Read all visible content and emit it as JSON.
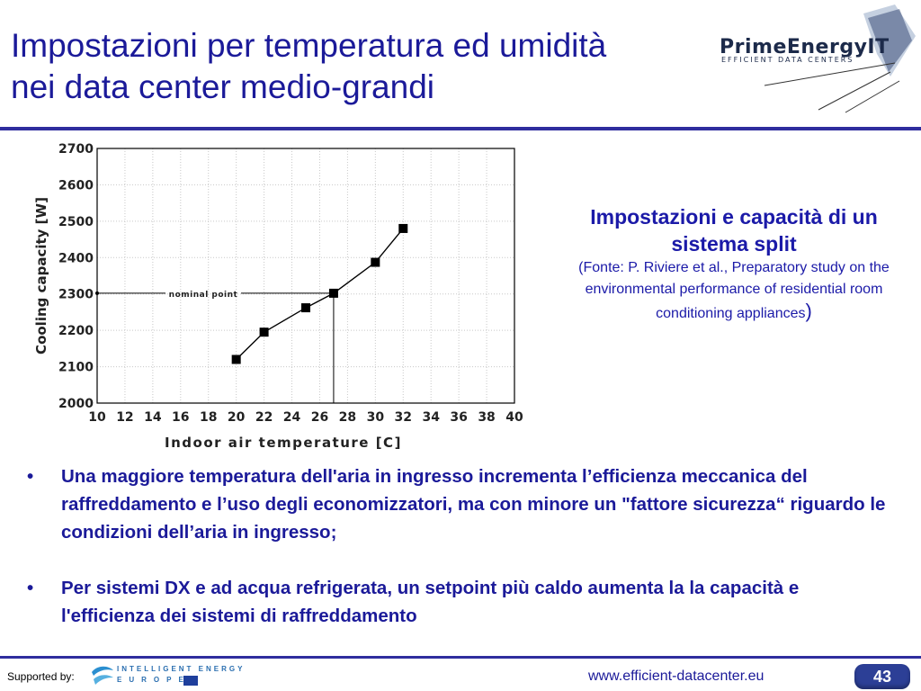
{
  "slide": {
    "title_line1": "Impostazioni per temperatura ed umidità",
    "title_line2": "nei data center medio-grandi"
  },
  "logo": {
    "name": "PrimeEnergyIT",
    "tagline": "EFFICIENT DATA CENTERS"
  },
  "caption": {
    "title": "Impostazioni e capacità di un sistema split",
    "source": "(Fonte: P. Riviere et al., Preparatory study on the environmental performance of residential room conditioning appliances",
    "close_paren": ")"
  },
  "bullets": [
    "Una maggiore temperatura dell'aria in ingresso incrementa l’efficienza meccanica del raffreddamento e l’uso degli economizzatori, ma con minore un \"fattore sicurezza“ riguardo le condizioni dell’aria in ingresso;",
    "Per sistemi DX e ad acqua refrigerata, un setpoint più caldo aumenta la la capacità e l'efficienza dei sistemi di raffreddamento"
  ],
  "bullet_symbol": "•",
  "footer": {
    "supported_by": "Supported by:",
    "iee_line1": "INTELLIGENT ENERGY",
    "iee_line2": "EUROPE",
    "url": "www.efficient-datacenter.eu",
    "page_number": "43"
  },
  "colors": {
    "title": "#1b1a99",
    "rule": "#2f2d9e",
    "badge": "#2c3f96"
  },
  "chart_data": {
    "type": "line",
    "xlabel": "Indoor air temperature [C]",
    "ylabel": "Cooling capacity [W]",
    "xlim": [
      10,
      40
    ],
    "ylim": [
      2000,
      2700
    ],
    "xticks": [
      10,
      12,
      14,
      16,
      18,
      20,
      22,
      24,
      26,
      28,
      30,
      32,
      34,
      36,
      38,
      40
    ],
    "yticks": [
      2000,
      2100,
      2200,
      2300,
      2400,
      2500,
      2600,
      2700
    ],
    "grid": true,
    "x": [
      20,
      22,
      25,
      27,
      30,
      32
    ],
    "values": [
      2120,
      2195,
      2262,
      2302,
      2387,
      2480
    ],
    "reference": {
      "label": "nominal point",
      "x": 27,
      "y": 2302
    }
  }
}
